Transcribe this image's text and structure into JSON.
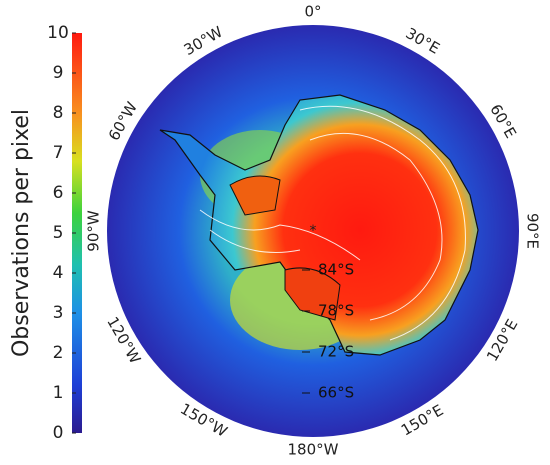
{
  "colorbar": {
    "label": "Observations per pixel",
    "lim": [
      0,
      10
    ],
    "ticks": [
      0,
      1,
      2,
      3,
      4,
      5,
      6,
      7,
      8,
      9,
      10
    ]
  },
  "longitude_labels": [
    "0°",
    "30°E",
    "60°E",
    "90°E",
    "120°E",
    "150°E",
    "180°W",
    "150°W",
    "120°W",
    "90°W",
    "60°W",
    "30°W"
  ],
  "latitude_labels": [
    "84°S",
    "78°S",
    "72°S",
    "66°S"
  ]
}
